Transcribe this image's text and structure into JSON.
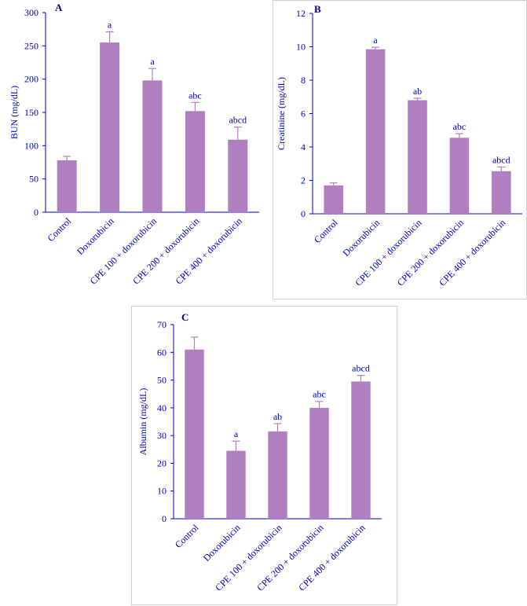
{
  "colors": {
    "bar": "#b07fc0",
    "axis": "#0000cc",
    "panel_label": "#00008b"
  },
  "chart_data": [
    {
      "type": "bar",
      "panel_label": "A",
      "ylabel": "BUN  (mg/dL)",
      "ylim": [
        0,
        300
      ],
      "yticks": [
        0,
        50,
        100,
        150,
        200,
        250,
        300
      ],
      "categories": [
        "Control",
        "Doxorubicin",
        "CPE 100 + doxorubicin",
        "CPE 200 + doxorubicin",
        "CPE 400 + doxorubicin"
      ],
      "values": [
        78,
        255,
        198,
        152,
        109
      ],
      "errors": [
        6,
        16,
        18,
        13,
        19
      ],
      "annotations": [
        "",
        "a",
        "a",
        "abc",
        "abcd"
      ]
    },
    {
      "type": "bar",
      "panel_label": "B",
      "ylabel": "Creatinine  (mg/dL)",
      "ylim": [
        0,
        12
      ],
      "yticks": [
        0,
        2,
        4,
        6,
        8,
        10,
        12
      ],
      "categories": [
        "Control",
        "Doxorubicin",
        "CPE 100 + doxorubicin",
        "CPE 200 + doxorubicin",
        "CPE 400 + doxorubicin"
      ],
      "values": [
        1.7,
        9.85,
        6.8,
        4.55,
        2.55
      ],
      "errors": [
        0.15,
        0.12,
        0.12,
        0.25,
        0.25
      ],
      "annotations": [
        "",
        "a",
        "ab",
        "abc",
        "abcd"
      ]
    },
    {
      "type": "bar",
      "panel_label": "C",
      "ylabel": "Albumin  (mg/dL)",
      "ylim": [
        0,
        70
      ],
      "yticks": [
        0,
        10,
        20,
        30,
        40,
        50,
        60,
        70
      ],
      "categories": [
        "Control",
        "Doxorubicin",
        "CPE 100 + doxorubicin",
        "CPE 200 + doxorubicin",
        "CPE 400 + doxorubicin"
      ],
      "values": [
        61,
        24.5,
        31.5,
        40,
        49.5
      ],
      "errors": [
        4.5,
        3.5,
        2.8,
        2.3,
        2.2
      ],
      "annotations": [
        "",
        "a",
        "ab",
        "abc",
        "abcd"
      ]
    }
  ]
}
